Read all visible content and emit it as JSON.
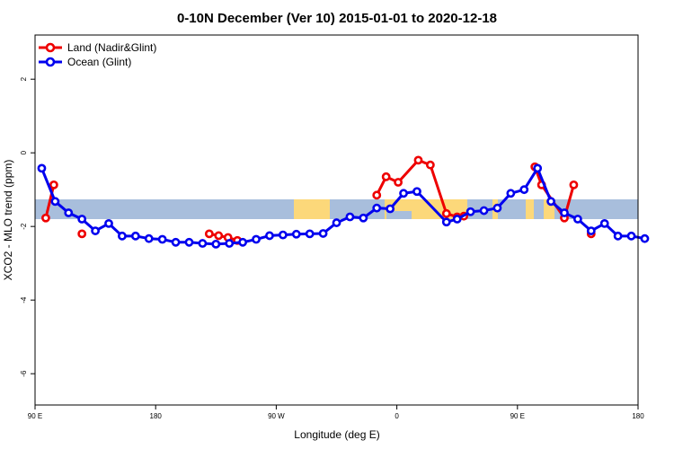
{
  "chart_data": {
    "type": "line",
    "title": "0-10N December (Ver 10)   2015-01-01 to 2020-12-18",
    "xlabel": "Longitude (deg E)",
    "ylabel": "XCO2 - MLO trend (ppm)",
    "xlim": [
      90,
      540
    ],
    "ylim": [
      -6.85,
      3.2
    ],
    "x_ticks": [
      {
        "value": 90,
        "label": "90 E"
      },
      {
        "value": 180,
        "label": "180"
      },
      {
        "value": 270,
        "label": "90 W"
      },
      {
        "value": 360,
        "label": "0"
      },
      {
        "value": 450,
        "label": "90 E"
      },
      {
        "value": 540,
        "label": "180"
      }
    ],
    "y_ticks": [
      {
        "value": 2,
        "label": "2"
      },
      {
        "value": 0,
        "label": "0"
      },
      {
        "value": -2,
        "label": "-2"
      },
      {
        "value": -4,
        "label": "-4"
      },
      {
        "value": -6,
        "label": "-6"
      }
    ],
    "map_band": {
      "lat_range": "0-10N",
      "y_top": -1.25,
      "y_bottom": -1.8
    },
    "legend": {
      "position": "top-left"
    },
    "series": [
      {
        "name": "Land (Nadir&Glint)",
        "color": "#ee0000",
        "segments": [
          [
            [
              98,
              -1.77
            ],
            [
              104,
              -0.87
            ]
          ],
          [
            [
              125,
              -2.2
            ]
          ],
          [
            [
              220,
              -2.2
            ],
            [
              227,
              -2.25
            ],
            [
              234,
              -2.3
            ],
            [
              241,
              -2.38
            ]
          ],
          [
            [
              345,
              -1.15
            ],
            [
              352,
              -0.65
            ],
            [
              361,
              -0.8
            ],
            [
              376,
              -0.2
            ],
            [
              385,
              -0.33
            ],
            [
              397,
              -1.65
            ],
            [
              405,
              -1.74
            ],
            [
              410,
              -1.72
            ]
          ],
          [
            [
              463,
              -0.38
            ],
            [
              468,
              -0.87
            ],
            [
              485,
              -1.77
            ],
            [
              492,
              -0.87
            ]
          ],
          [
            [
              505,
              -2.2
            ]
          ]
        ]
      },
      {
        "name": "Ocean (Glint)",
        "color": "#0000ee",
        "points": [
          [
            95,
            -0.42
          ],
          [
            105,
            -1.32
          ],
          [
            115,
            -1.63
          ],
          [
            125,
            -1.8
          ],
          [
            135,
            -2.12
          ],
          [
            145,
            -1.92
          ],
          [
            155,
            -2.26
          ],
          [
            165,
            -2.26
          ],
          [
            175,
            -2.33
          ],
          [
            185,
            -2.35
          ],
          [
            195,
            -2.43
          ],
          [
            205,
            -2.43
          ],
          [
            215,
            -2.46
          ],
          [
            225,
            -2.48
          ],
          [
            235,
            -2.46
          ],
          [
            245,
            -2.43
          ],
          [
            255,
            -2.35
          ],
          [
            265,
            -2.25
          ],
          [
            275,
            -2.23
          ],
          [
            285,
            -2.21
          ],
          [
            295,
            -2.2
          ],
          [
            305,
            -2.19
          ],
          [
            315,
            -1.9
          ],
          [
            325,
            -1.74
          ],
          [
            335,
            -1.77
          ],
          [
            345,
            -1.5
          ],
          [
            355,
            -1.52
          ],
          [
            365,
            -1.1
          ],
          [
            375,
            -1.05
          ],
          [
            397,
            -1.88
          ],
          [
            405,
            -1.8
          ],
          [
            415,
            -1.6
          ],
          [
            425,
            -1.57
          ],
          [
            435,
            -1.5
          ],
          [
            445,
            -1.1
          ],
          [
            455,
            -1.0
          ],
          [
            465,
            -0.42
          ],
          [
            475,
            -1.32
          ],
          [
            485,
            -1.63
          ],
          [
            495,
            -1.8
          ],
          [
            505,
            -2.12
          ],
          [
            515,
            -1.92
          ],
          [
            525,
            -2.26
          ],
          [
            535,
            -2.26
          ],
          [
            545,
            -2.33
          ]
        ]
      }
    ]
  }
}
